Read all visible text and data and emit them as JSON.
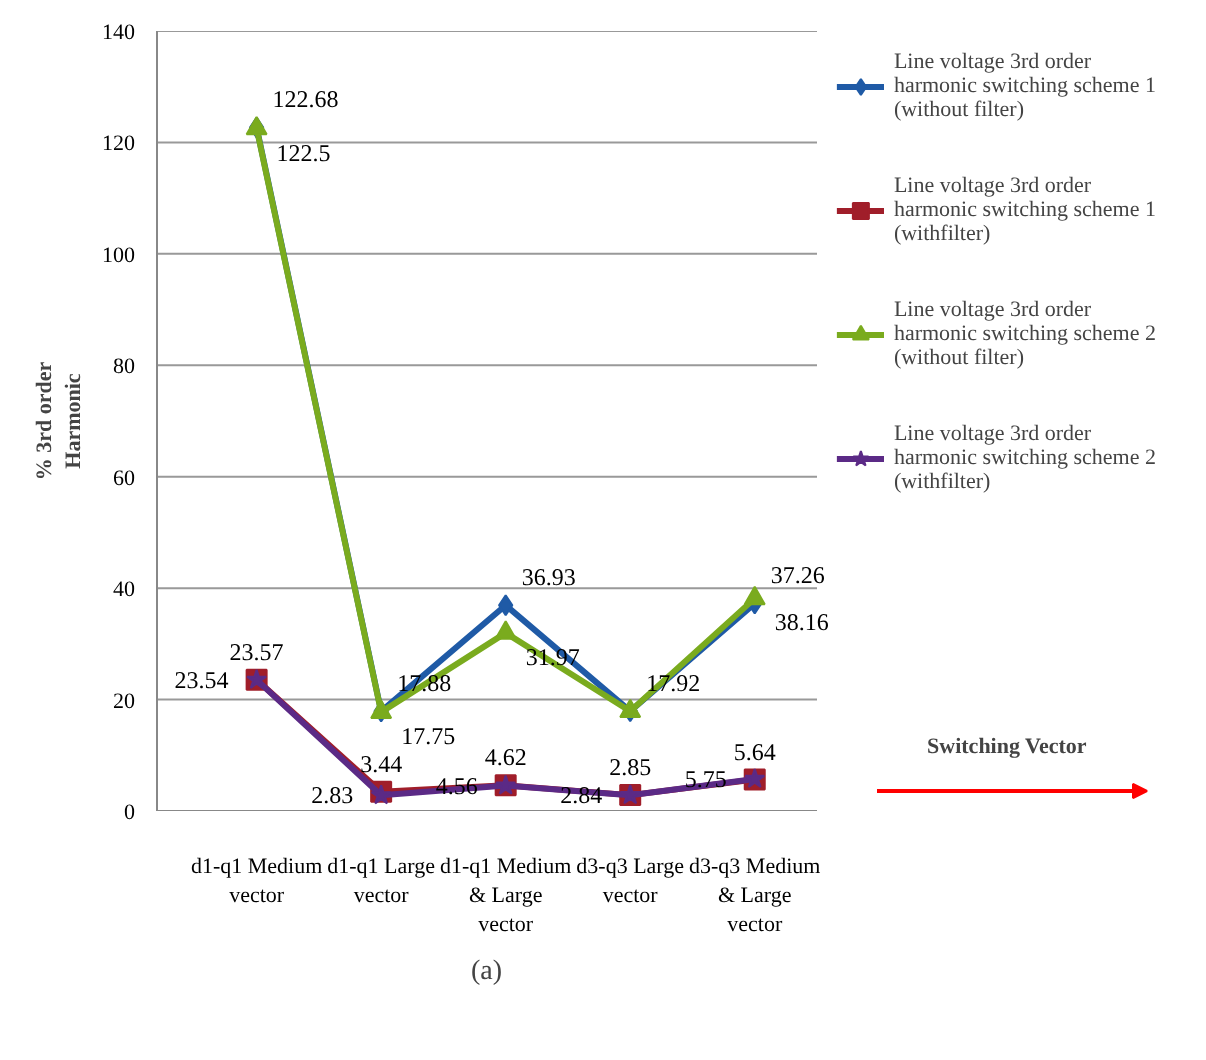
{
  "chart_data": {
    "type": "line",
    "ylabel": "% 3rd order Harmonic",
    "categories": [
      "d1-q1 Medium vector",
      "d1-q1 Large vector",
      "d1-q1 Medium & Large vector",
      "d3-q3 Large vector",
      "d3-q3 Medium & Large vector"
    ],
    "series": [
      {
        "name": "Line voltage 3rd order harmonic switching scheme 1 (without filter)",
        "color": "#1f5aa6",
        "marker": "diamond",
        "values": [
          122.68,
          17.88,
          36.93,
          17.92,
          37.26
        ],
        "value_labels": [
          "122.68",
          "17.88",
          "36.93",
          "17.92",
          "37.26"
        ]
      },
      {
        "name": "Line voltage 3rd order harmonic switching scheme 1 (withfilter)",
        "color": "#a01e2a",
        "marker": "square",
        "values": [
          23.57,
          3.44,
          4.62,
          2.85,
          5.64
        ],
        "value_labels": [
          "23.57",
          "3.44",
          "4.62",
          "2.85",
          "5.64"
        ]
      },
      {
        "name": "Line voltage 3rd order harmonic switching scheme 2 (without filter)",
        "color": "#7aab1e",
        "marker": "triangle",
        "values": [
          122.5,
          17.75,
          31.97,
          17.9,
          38.16
        ],
        "value_labels": [
          "122.5",
          "17.75",
          "31.97",
          null,
          "38.16"
        ]
      },
      {
        "name": "Line voltage 3rd order harmonic switching scheme 2 (withfilter)",
        "color": "#5b2a86",
        "marker": "star",
        "values": [
          23.54,
          2.83,
          4.56,
          2.84,
          5.75
        ],
        "value_labels": [
          "23.54",
          "2.83",
          "4.56",
          "2.84",
          "5.75"
        ]
      }
    ],
    "ylim": [
      0,
      140
    ],
    "yticks": [
      0,
      20,
      40,
      60,
      80,
      100,
      120,
      140
    ],
    "grid": "y",
    "legend": "right",
    "line_style": "solid",
    "annotations": [
      "Switching Vector",
      "(a)"
    ]
  }
}
